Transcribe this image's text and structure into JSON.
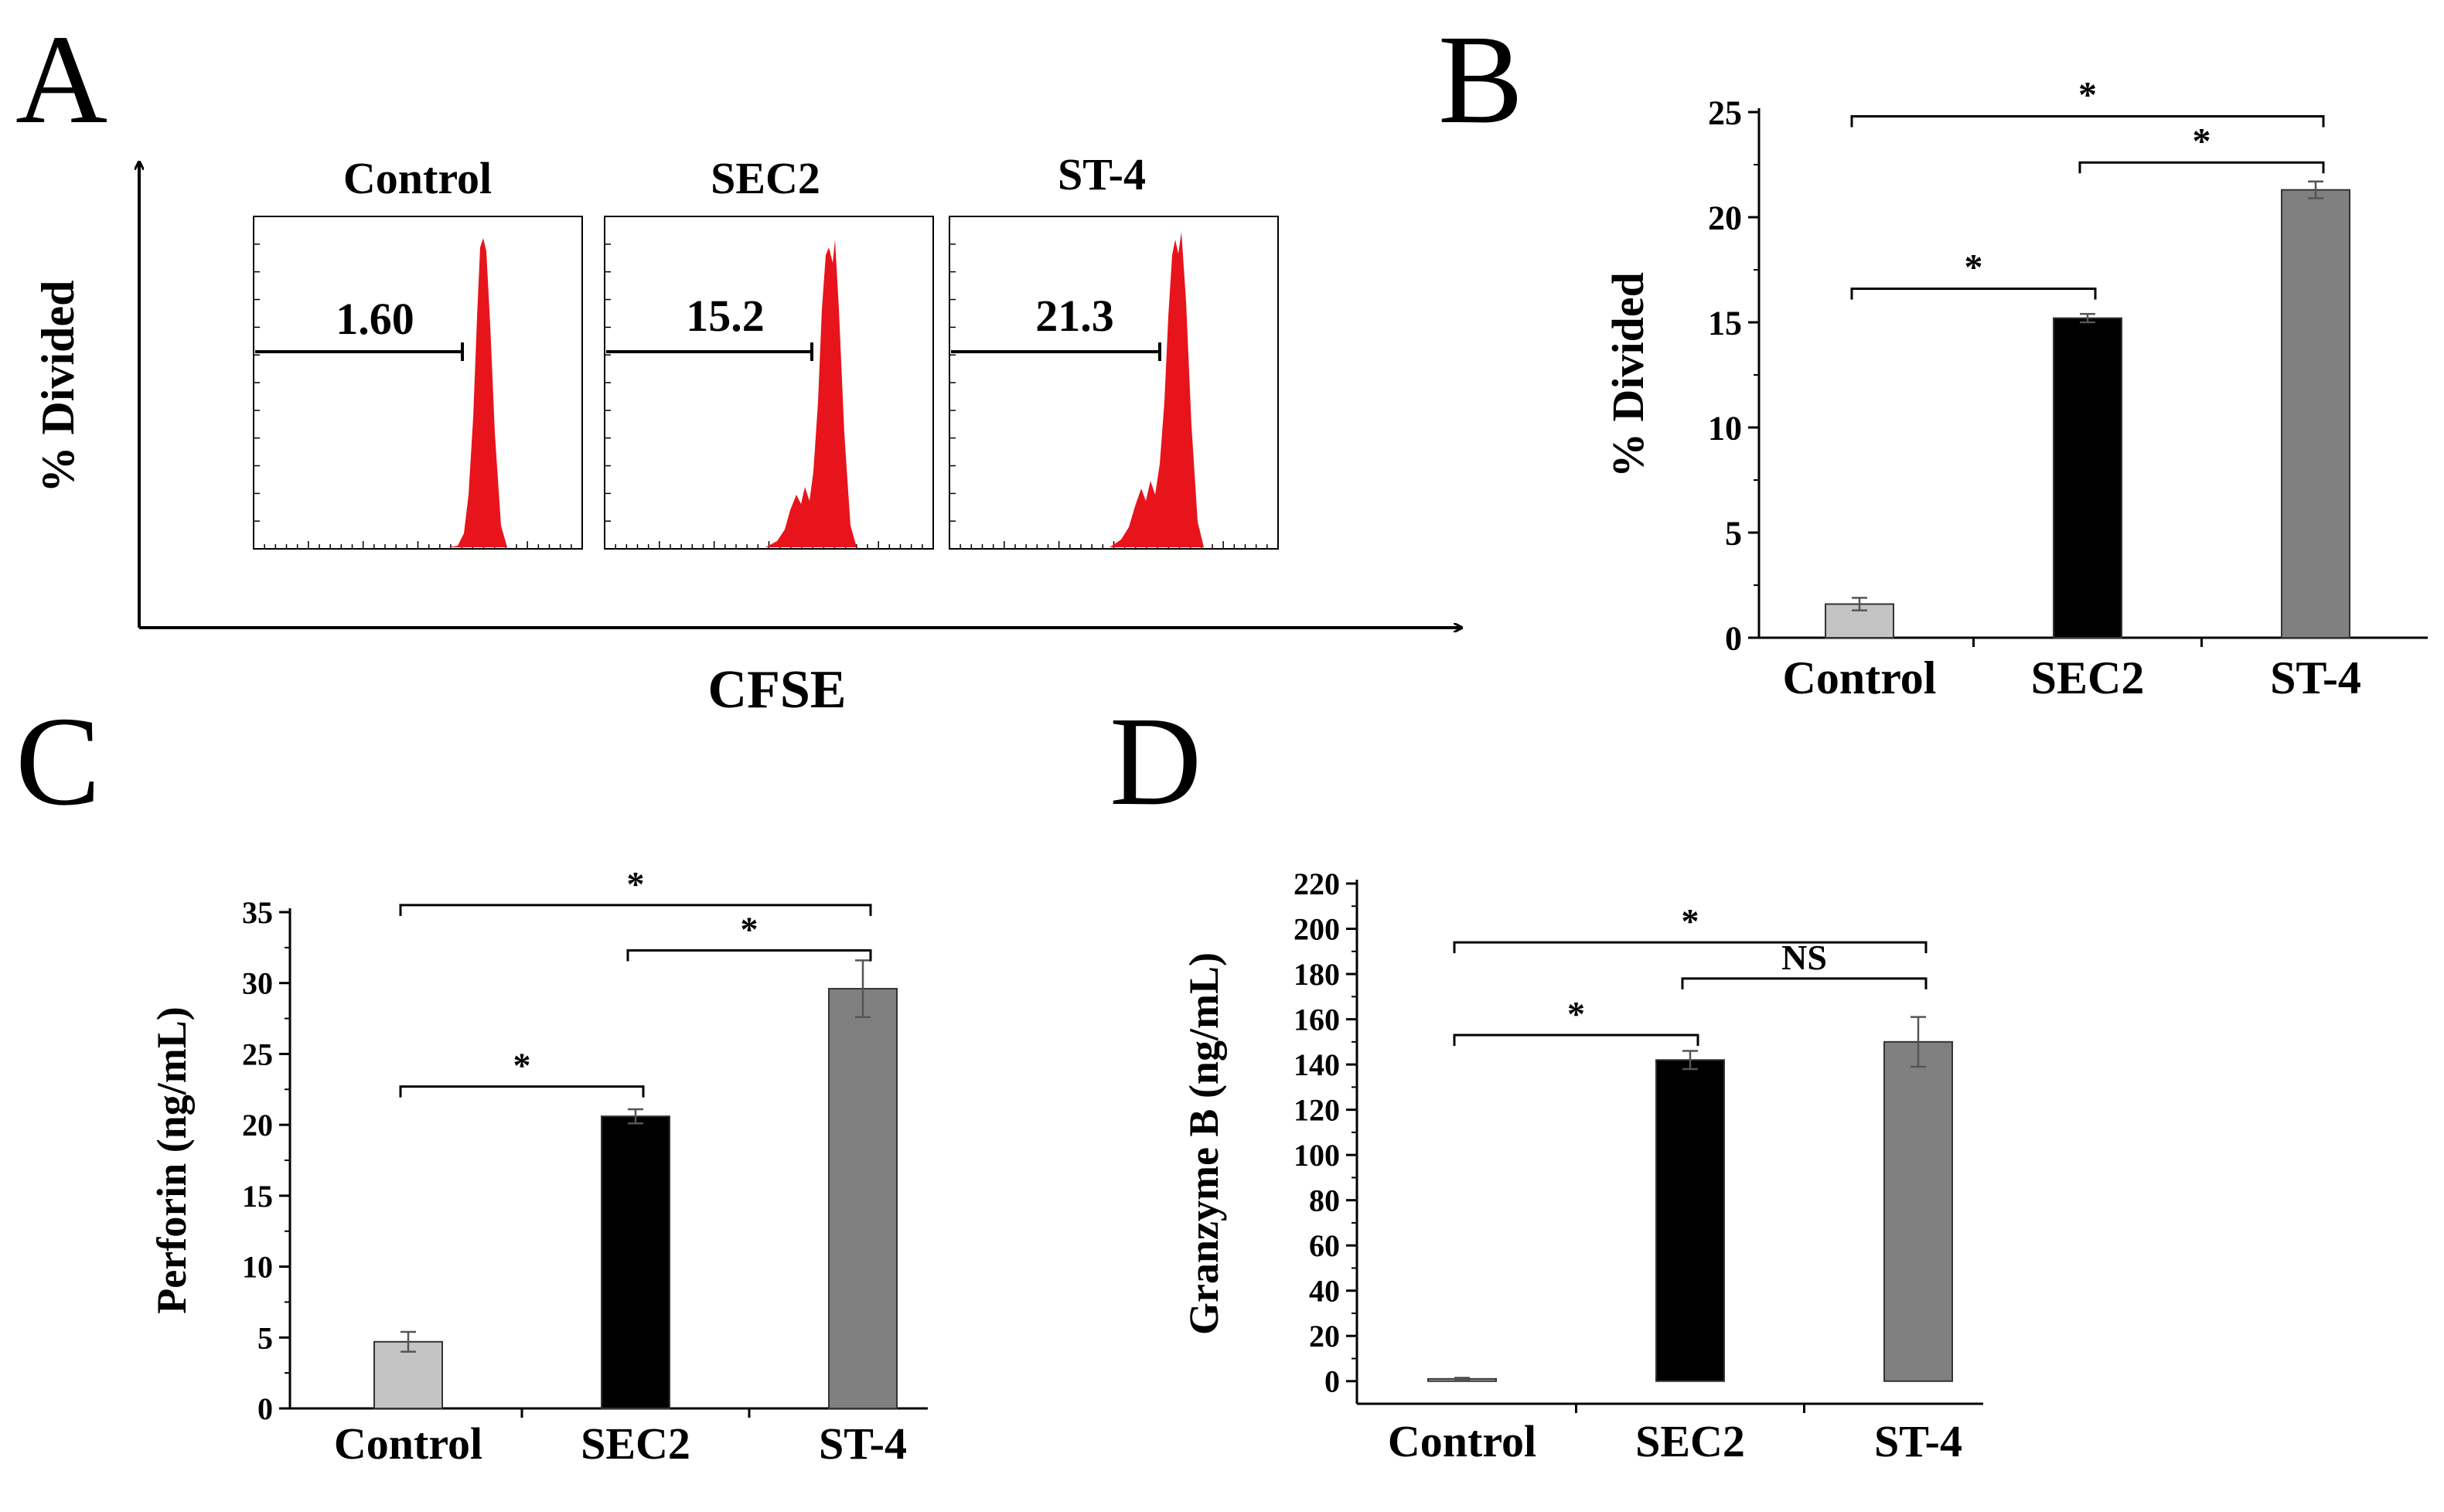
{
  "panel_letters": [
    "A",
    "B",
    "C",
    "D"
  ],
  "chart_data": [
    {
      "panel": "A",
      "type": "histogram-overlay",
      "ylabel": "% Divided",
      "xlabel": "CFSE",
      "subpanels": [
        {
          "title": "Control",
          "value_label": "1.60"
        },
        {
          "title": "SEC2",
          "value_label": "15.2"
        },
        {
          "title": "ST-4",
          "value_label": "21.3"
        }
      ],
      "histogram_color": "#e8141c"
    },
    {
      "panel": "B",
      "type": "bar",
      "categories": [
        "Control",
        "SEC2",
        "ST-4"
      ],
      "values": [
        1.6,
        15.2,
        21.3
      ],
      "errors": [
        0.3,
        0.2,
        0.4
      ],
      "colors": [
        "#c4c4c4",
        "#000000",
        "#808080"
      ],
      "ylabel": "% Divided",
      "xlabel": "",
      "ylim": [
        0,
        25
      ],
      "yticks": [
        0,
        5,
        10,
        15,
        20,
        25
      ],
      "significance": [
        {
          "from": 0,
          "to": 2,
          "label": "*",
          "level": 24.8
        },
        {
          "from": 1,
          "to": 2,
          "label": "*",
          "level": 22.6
        },
        {
          "from": 0,
          "to": 1,
          "label": "*",
          "level": 16.6
        }
      ]
    },
    {
      "panel": "C",
      "type": "bar",
      "categories": [
        "Control",
        "SEC2",
        "ST-4"
      ],
      "values": [
        4.7,
        20.6,
        29.6
      ],
      "errors": [
        0.7,
        0.5,
        2.0
      ],
      "colors": [
        "#c4c4c4",
        "#000000",
        "#808080"
      ],
      "ylabel": "Perforin  (ng/mL)",
      "xlabel": "",
      "ylim": [
        0,
        35
      ],
      "yticks": [
        0,
        5,
        10,
        15,
        20,
        25,
        30,
        35
      ],
      "significance": [
        {
          "from": 0,
          "to": 2,
          "label": "*",
          "level": 35.5
        },
        {
          "from": 1,
          "to": 2,
          "label": "*",
          "level": 32.3
        },
        {
          "from": 0,
          "to": 1,
          "label": "*",
          "level": 22.7
        }
      ]
    },
    {
      "panel": "D",
      "type": "bar",
      "categories": [
        "Control",
        "SEC2",
        "ST-4"
      ],
      "values": [
        1,
        142,
        150
      ],
      "errors": [
        0.5,
        4,
        11
      ],
      "colors": [
        "#c4c4c4",
        "#000000",
        "#808080"
      ],
      "ylabel": "Granzyme B  (ng/mL)",
      "xlabel": "",
      "ylim": [
        -10,
        220
      ],
      "yticks": [
        0,
        20,
        40,
        60,
        80,
        100,
        120,
        140,
        160,
        180,
        200,
        220
      ],
      "significance": [
        {
          "from": 0,
          "to": 2,
          "label": "*",
          "level": 194
        },
        {
          "from": 1,
          "to": 2,
          "label": "NS",
          "level": 178
        },
        {
          "from": 0,
          "to": 1,
          "label": "*",
          "level": 153
        }
      ]
    }
  ]
}
